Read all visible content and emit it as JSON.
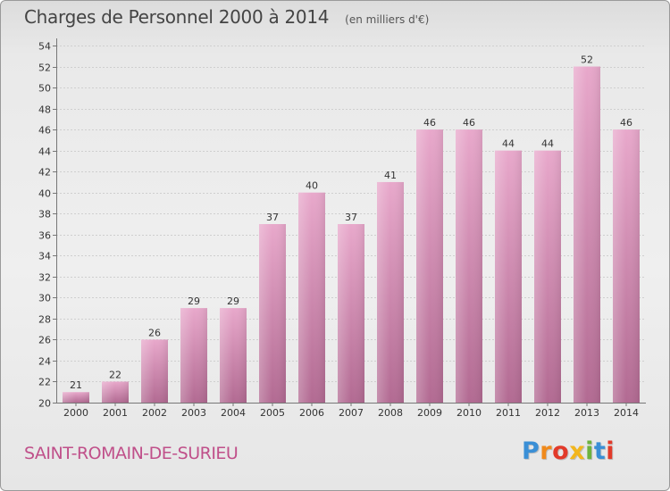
{
  "chart_data": {
    "type": "bar",
    "title": "Charges de Personnel 2000 à 2014",
    "subtitle": "(en milliers d'€)",
    "categories": [
      "2000",
      "2001",
      "2002",
      "2003",
      "2004",
      "2005",
      "2006",
      "2007",
      "2008",
      "2009",
      "2010",
      "2011",
      "2012",
      "2013",
      "2014"
    ],
    "values": [
      21,
      22,
      26,
      29,
      29,
      37,
      40,
      37,
      41,
      46,
      46,
      44,
      44,
      52,
      46
    ],
    "ylim": [
      20,
      54
    ],
    "yticks": [
      "20",
      "22",
      "24",
      "26",
      "28",
      "30",
      "32",
      "34",
      "36",
      "38",
      "40",
      "42",
      "44",
      "46",
      "48",
      "50",
      "52",
      "54"
    ],
    "grid": true,
    "bar_color": "#d68ab0",
    "commune": "SAINT-ROMAIN-DE-SURIEU"
  },
  "branding": {
    "logo_text": "Proxiti",
    "logo_colors": [
      "#3a8fd6",
      "#f08a1c",
      "#e23a2a",
      "#f2b61d",
      "#6db33f",
      "#3a8fd6",
      "#e23a2a"
    ]
  }
}
